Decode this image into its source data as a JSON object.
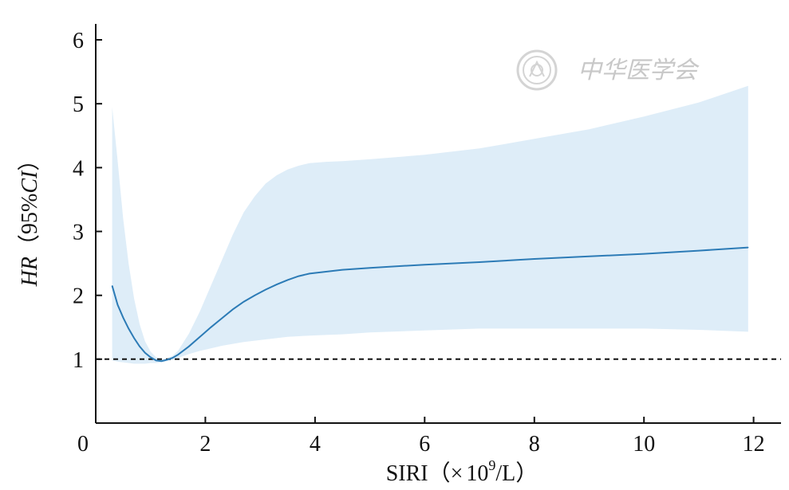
{
  "chart_data": {
    "type": "line",
    "xlabel": {
      "prefix": "SIRI（",
      "times": "×",
      "base": "10",
      "exp": "9",
      "suffix": "/L）"
    },
    "ylabel": {
      "italic_hr": "HR",
      "open": "（",
      "pct": "95%",
      "italic_ci": "CI",
      "close": "）"
    },
    "xlim": [
      0,
      12.5
    ],
    "ylim": [
      0,
      6.25
    ],
    "x_ticks": [
      "0",
      "2",
      "4",
      "6",
      "8",
      "10",
      "12"
    ],
    "y_ticks": [
      "1",
      "2",
      "3",
      "4",
      "5",
      "6"
    ],
    "reference_line": {
      "y": 1,
      "style": "dashed"
    },
    "series": [
      {
        "kind": "hr",
        "color": "#2c7bb6",
        "points": [
          [
            0.3,
            2.15
          ],
          [
            0.4,
            1.85
          ],
          [
            0.5,
            1.65
          ],
          [
            0.6,
            1.48
          ],
          [
            0.7,
            1.33
          ],
          [
            0.8,
            1.2
          ],
          [
            0.9,
            1.1
          ],
          [
            1.0,
            1.03
          ],
          [
            1.1,
            0.98
          ],
          [
            1.2,
            0.97
          ],
          [
            1.3,
            0.99
          ],
          [
            1.4,
            1.02
          ],
          [
            1.5,
            1.07
          ],
          [
            1.7,
            1.2
          ],
          [
            1.9,
            1.35
          ],
          [
            2.1,
            1.5
          ],
          [
            2.3,
            1.64
          ],
          [
            2.5,
            1.78
          ],
          [
            2.7,
            1.9
          ],
          [
            2.9,
            2.0
          ],
          [
            3.1,
            2.09
          ],
          [
            3.3,
            2.17
          ],
          [
            3.5,
            2.24
          ],
          [
            3.7,
            2.3
          ],
          [
            3.9,
            2.34
          ],
          [
            4.2,
            2.37
          ],
          [
            4.5,
            2.4
          ],
          [
            5.0,
            2.43
          ],
          [
            6.0,
            2.48
          ],
          [
            7.0,
            2.52
          ],
          [
            8.0,
            2.57
          ],
          [
            9.0,
            2.61
          ],
          [
            10.0,
            2.65
          ],
          [
            11.0,
            2.7
          ],
          [
            11.9,
            2.75
          ]
        ]
      },
      {
        "kind": "ci-upper",
        "color": "#deedf8",
        "points": [
          [
            0.3,
            4.95
          ],
          [
            0.4,
            4.1
          ],
          [
            0.5,
            3.2
          ],
          [
            0.6,
            2.5
          ],
          [
            0.7,
            1.95
          ],
          [
            0.8,
            1.55
          ],
          [
            0.9,
            1.28
          ],
          [
            1.0,
            1.12
          ],
          [
            1.1,
            1.03
          ],
          [
            1.2,
            1.0
          ],
          [
            1.3,
            1.01
          ],
          [
            1.4,
            1.05
          ],
          [
            1.5,
            1.13
          ],
          [
            1.7,
            1.4
          ],
          [
            1.9,
            1.75
          ],
          [
            2.1,
            2.15
          ],
          [
            2.3,
            2.55
          ],
          [
            2.5,
            2.95
          ],
          [
            2.7,
            3.3
          ],
          [
            2.9,
            3.55
          ],
          [
            3.1,
            3.75
          ],
          [
            3.3,
            3.88
          ],
          [
            3.5,
            3.97
          ],
          [
            3.7,
            4.03
          ],
          [
            3.9,
            4.07
          ],
          [
            4.2,
            4.09
          ],
          [
            4.5,
            4.1
          ],
          [
            5.0,
            4.13
          ],
          [
            6.0,
            4.2
          ],
          [
            7.0,
            4.3
          ],
          [
            8.0,
            4.45
          ],
          [
            9.0,
            4.6
          ],
          [
            10.0,
            4.8
          ],
          [
            11.0,
            5.02
          ],
          [
            11.9,
            5.28
          ]
        ]
      },
      {
        "kind": "ci-lower",
        "color": "#deedf8",
        "points": [
          [
            0.3,
            0.98
          ],
          [
            0.4,
            0.96
          ],
          [
            0.5,
            0.95
          ],
          [
            0.6,
            0.94
          ],
          [
            0.7,
            0.93
          ],
          [
            0.8,
            0.93
          ],
          [
            0.9,
            0.93
          ],
          [
            1.0,
            0.94
          ],
          [
            1.1,
            0.94
          ],
          [
            1.2,
            0.95
          ],
          [
            1.3,
            0.97
          ],
          [
            1.4,
            0.99
          ],
          [
            1.5,
            1.02
          ],
          [
            1.7,
            1.08
          ],
          [
            1.9,
            1.13
          ],
          [
            2.1,
            1.17
          ],
          [
            2.3,
            1.21
          ],
          [
            2.5,
            1.24
          ],
          [
            2.7,
            1.27
          ],
          [
            2.9,
            1.29
          ],
          [
            3.1,
            1.31
          ],
          [
            3.3,
            1.33
          ],
          [
            3.5,
            1.35
          ],
          [
            3.7,
            1.36
          ],
          [
            3.9,
            1.37
          ],
          [
            4.2,
            1.38
          ],
          [
            4.5,
            1.39
          ],
          [
            5.0,
            1.42
          ],
          [
            6.0,
            1.45
          ],
          [
            7.0,
            1.48
          ],
          [
            8.0,
            1.48
          ],
          [
            9.0,
            1.48
          ],
          [
            10.0,
            1.48
          ],
          [
            11.0,
            1.46
          ],
          [
            11.9,
            1.43
          ]
        ]
      }
    ],
    "grid": false,
    "legend": "none"
  },
  "watermark": {
    "text": "中华医学会",
    "icon": "society-seal-icon"
  }
}
